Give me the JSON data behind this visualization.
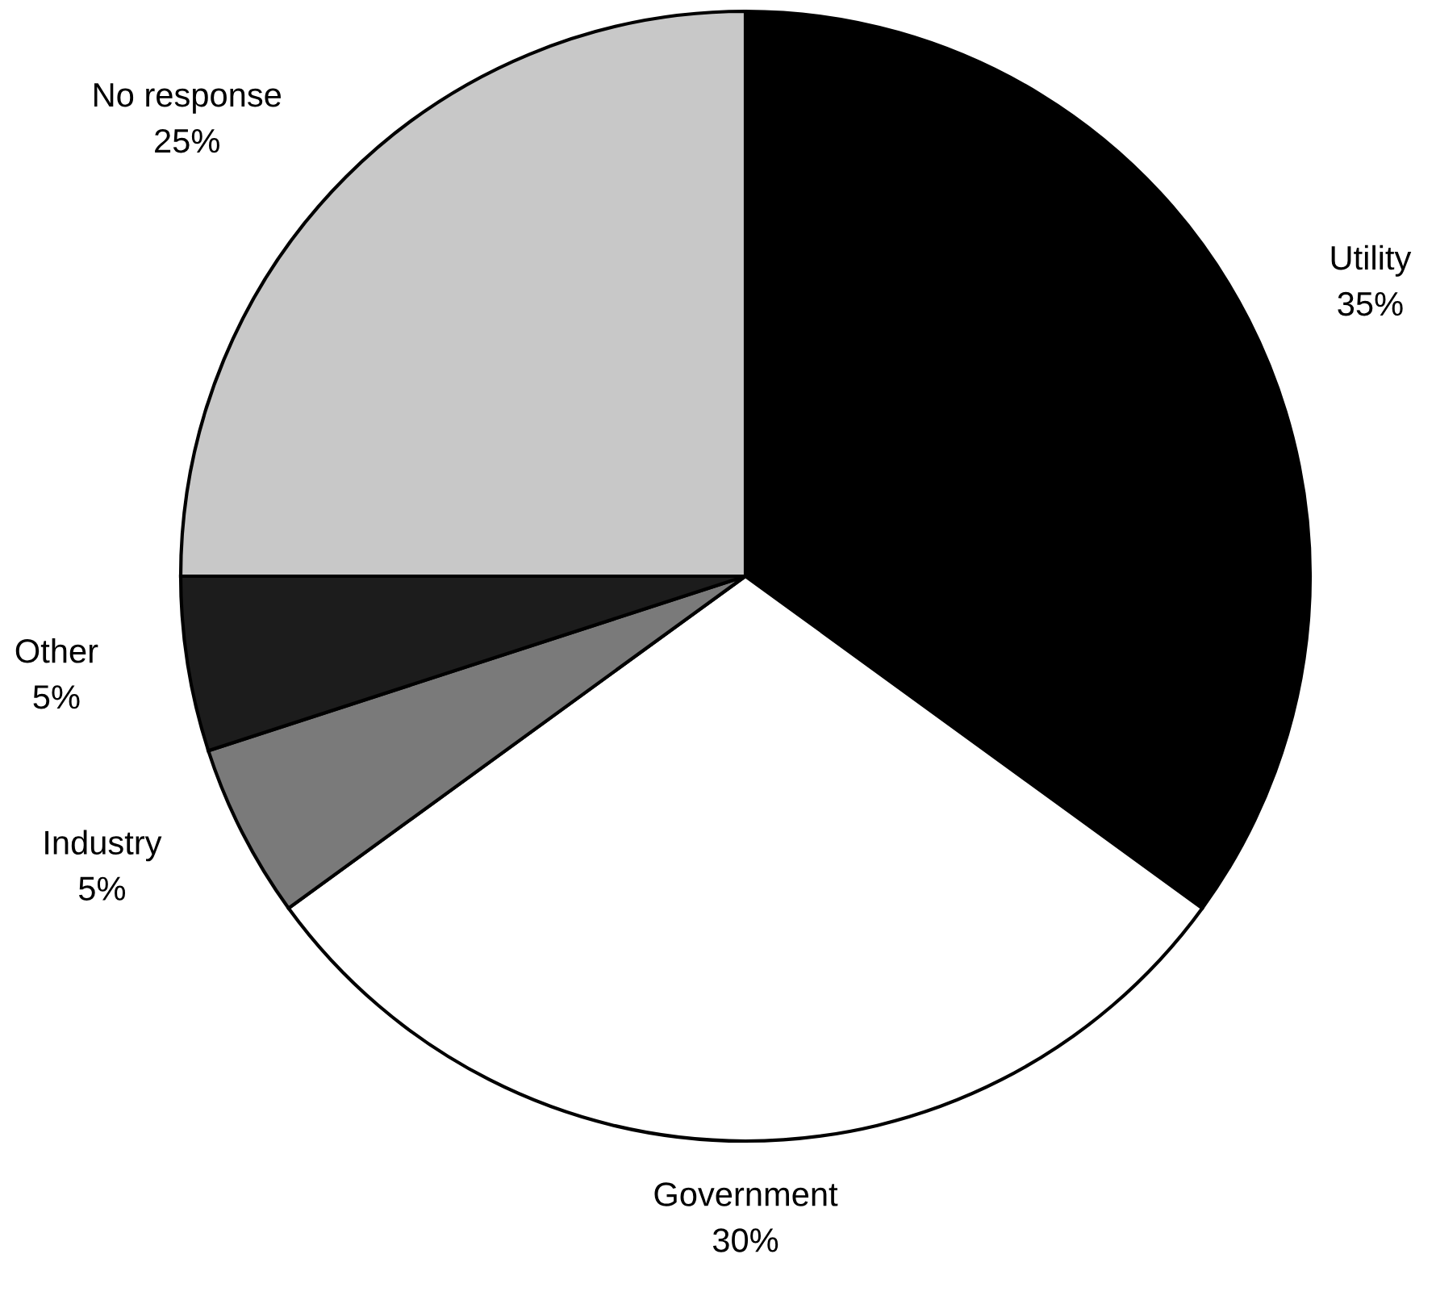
{
  "chart_data": {
    "type": "pie",
    "categories": [
      "Utility",
      "Government",
      "Industry",
      "Other",
      "No response"
    ],
    "values": [
      35,
      30,
      5,
      5,
      25
    ],
    "value_labels": [
      "35%",
      "30%",
      "5%",
      "5%",
      "25%"
    ],
    "colors": [
      "#000000",
      "#ffffff",
      "#7a7a7a",
      "#1c1c1c",
      "#c8c8c8"
    ]
  }
}
